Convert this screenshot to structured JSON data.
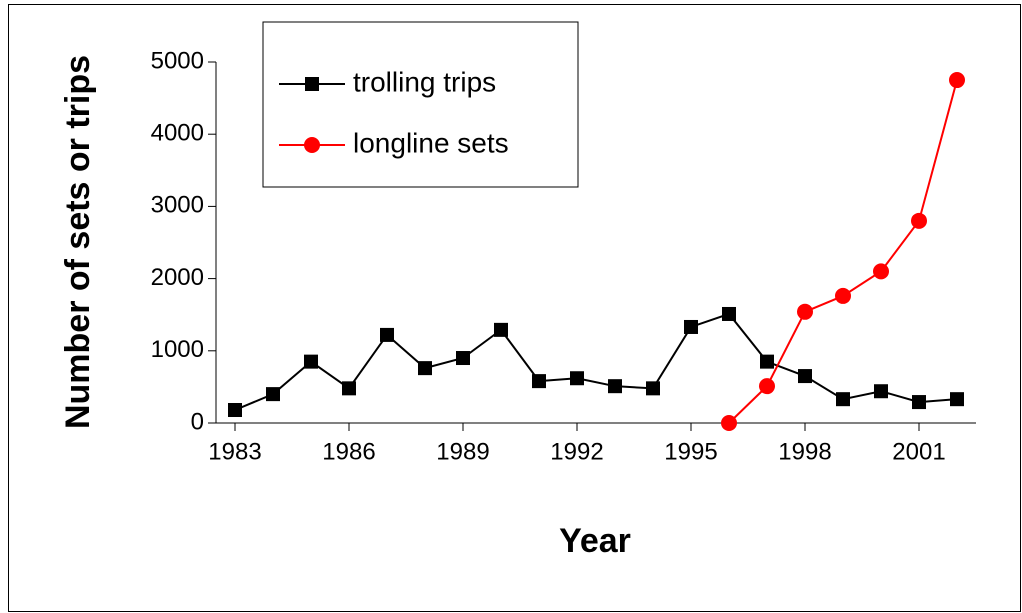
{
  "chart_data": {
    "type": "line",
    "x_label": "Year",
    "y_label": "Number of sets or trips",
    "x": [
      1983,
      1984,
      1985,
      1986,
      1987,
      1988,
      1989,
      1990,
      1991,
      1992,
      1993,
      1994,
      1995,
      1996,
      1997,
      1998,
      1999,
      2000,
      2001,
      2002
    ],
    "series": [
      {
        "name": "trolling trips",
        "color": "#000000",
        "marker": "square",
        "values": [
          180,
          400,
          850,
          480,
          1220,
          760,
          900,
          1290,
          580,
          620,
          510,
          480,
          1330,
          1510,
          850,
          650,
          330,
          440,
          290,
          330
        ]
      },
      {
        "name": "longline sets",
        "color": "#ff0000",
        "marker": "circle",
        "values": [
          null,
          null,
          null,
          null,
          null,
          null,
          null,
          null,
          null,
          null,
          null,
          null,
          null,
          0,
          510,
          1540,
          1760,
          2100,
          2800,
          4750
        ]
      }
    ],
    "xlim": [
      1982.5,
      2002.5
    ],
    "xticks": [
      1983,
      1986,
      1989,
      1992,
      1995,
      1998,
      2001
    ],
    "ylim": [
      0,
      5000
    ],
    "yticks": [
      0,
      1000,
      2000,
      3000,
      4000,
      5000
    ],
    "legend": "upper left"
  }
}
